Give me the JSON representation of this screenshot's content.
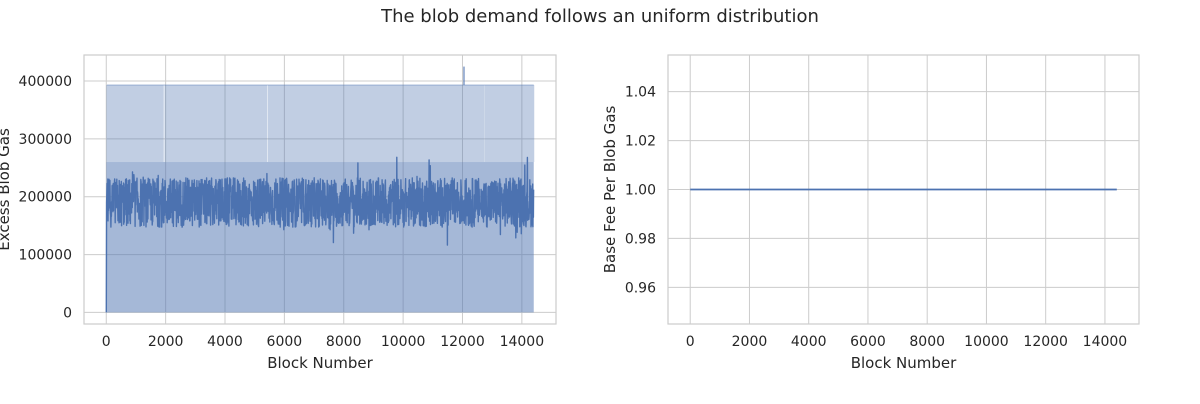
{
  "figure": {
    "suptitle": "The blob demand follows an uniform distribution"
  },
  "chart_data": [
    {
      "type": "line",
      "xlabel": "Block Number",
      "ylabel": "Excess Blob Gas",
      "xlim": [
        -750,
        15150
      ],
      "ylim": [
        -20000,
        445000
      ],
      "xticks": [
        0,
        2000,
        4000,
        6000,
        8000,
        10000,
        12000,
        14000
      ],
      "yticks": [
        0,
        100000,
        200000,
        300000,
        400000
      ],
      "grid": true,
      "series_color": "#4c72b0",
      "x_range": [
        0,
        14400
      ],
      "series": [
        {
          "kind": "line",
          "typical_range": [
            150000,
            240000
          ],
          "mean": 190000,
          "min": 0,
          "start_value": 0
        },
        {
          "kind": "fill-band",
          "lower": 0,
          "upper": 260000,
          "spike_top": 393216,
          "max_spike": 425000,
          "max_spike_x": 12050
        }
      ]
    },
    {
      "type": "line",
      "xlabel": "Block Number",
      "ylabel": "Base Fee Per Blob Gas",
      "xlim": [
        -750,
        15150
      ],
      "ylim": [
        0.945,
        1.055
      ],
      "xticks": [
        0,
        2000,
        4000,
        6000,
        8000,
        10000,
        12000,
        14000
      ],
      "yticks": [
        0.96,
        0.98,
        1.0,
        1.02,
        1.04
      ],
      "ytick_labels": [
        "0.96",
        "0.98",
        "1.00",
        "1.02",
        "1.04"
      ],
      "grid": true,
      "series_color": "#4c72b0",
      "series": [
        {
          "kind": "line",
          "x": [
            0,
            14400
          ],
          "y": [
            1.0,
            1.0
          ]
        }
      ]
    }
  ]
}
